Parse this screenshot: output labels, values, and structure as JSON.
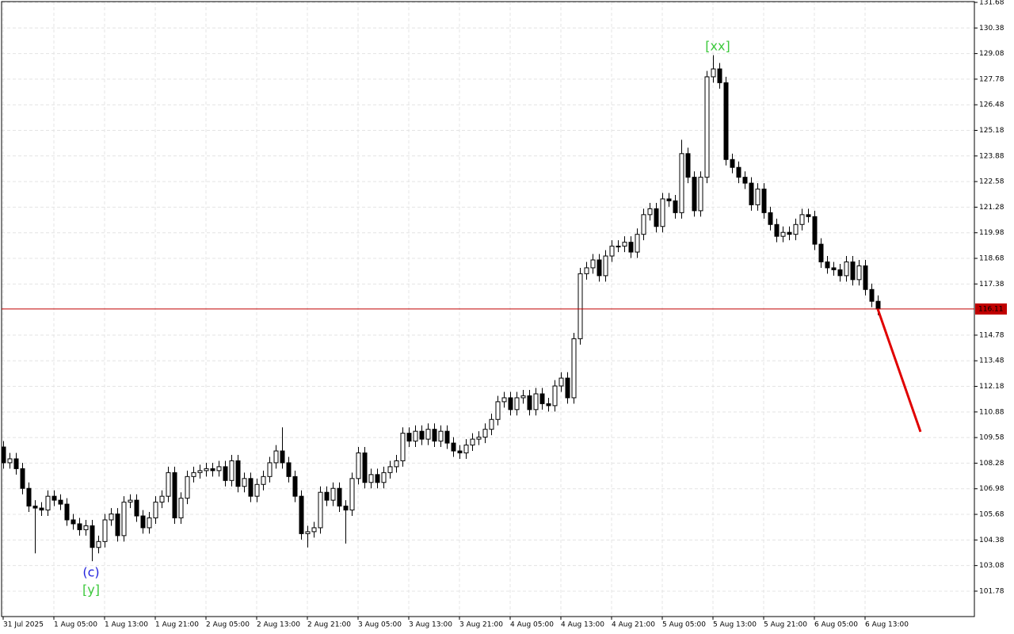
{
  "chart_data": {
    "type": "candlestick",
    "categories": [
      "31 Jul 2025",
      null,
      null,
      null,
      null,
      null,
      null,
      null,
      "1 Aug 05:00",
      null,
      null,
      null,
      null,
      null,
      null,
      null,
      "1 Aug 13:00",
      null,
      null,
      null,
      null,
      null,
      null,
      null,
      "1 Aug 21:00",
      null,
      null,
      null,
      null,
      null,
      null,
      null,
      "2 Aug 05:00",
      null,
      null,
      null,
      null,
      null,
      null,
      null,
      "2 Aug 13:00",
      null,
      null,
      null,
      null,
      null,
      null,
      null,
      "2 Aug 21:00",
      null,
      null,
      null,
      null,
      null,
      null,
      null,
      "3 Aug 05:00",
      null,
      null,
      null,
      null,
      null,
      null,
      null,
      "3 Aug 13:00",
      null,
      null,
      null,
      null,
      null,
      null,
      null,
      "3 Aug 21:00",
      null,
      null,
      null,
      null,
      null,
      null,
      null,
      "4 Aug 05:00",
      null,
      null,
      null,
      null,
      null,
      null,
      null,
      "4 Aug 13:00",
      null,
      null,
      null,
      null,
      null,
      null,
      null,
      "4 Aug 21:00",
      null,
      null,
      null,
      null,
      null,
      null,
      null,
      "5 Aug 05:00",
      null,
      null,
      null,
      null,
      null,
      null,
      null,
      "5 Aug 13:00",
      null,
      null,
      null,
      null,
      null,
      null,
      null,
      "5 Aug 21:00",
      null,
      null,
      null,
      null,
      null,
      null,
      null,
      "6 Aug 05:00",
      null,
      null,
      null,
      null,
      null,
      null,
      null,
      "6 Aug 13:00",
      null,
      null
    ],
    "open": [
      109.1,
      108.3,
      108.5,
      108.0,
      107.0,
      106.1,
      106.0,
      105.9,
      106.6,
      106.4,
      106.2,
      105.4,
      105.2,
      104.9,
      105.1,
      104.0,
      104.3,
      105.4,
      105.7,
      104.6,
      106.3,
      106.4,
      105.6,
      105.0,
      105.5,
      106.3,
      106.6,
      107.8,
      105.5,
      106.5,
      107.6,
      107.8,
      107.9,
      108.0,
      107.9,
      108.1,
      107.4,
      108.4,
      107.1,
      107.5,
      106.6,
      107.2,
      107.6,
      108.3,
      108.9,
      108.3,
      107.6,
      106.6,
      104.7,
      104.8,
      105.0,
      106.8,
      106.4,
      107.0,
      106.1,
      105.9,
      107.5,
      108.8,
      107.3,
      107.7,
      107.3,
      107.8,
      108.1,
      108.4,
      109.8,
      109.4,
      109.9,
      109.5,
      110.0,
      109.4,
      109.9,
      109.3,
      108.9,
      108.8,
      109.2,
      109.5,
      109.6,
      110.0,
      110.5,
      111.4,
      111.6,
      111.0,
      111.6,
      111.7,
      111.0,
      111.8,
      111.3,
      111.2,
      112.2,
      112.6,
      111.6,
      114.6,
      117.9,
      118.2,
      118.6,
      117.8,
      118.8,
      119.3,
      119.3,
      119.5,
      119.0,
      119.9,
      120.9,
      121.2,
      120.3,
      121.7,
      121.6,
      121.0,
      124.0,
      122.8,
      121.1,
      122.8,
      127.9,
      128.3,
      127.6,
      123.7,
      123.3,
      122.8,
      122.5,
      121.4,
      122.2,
      121.0,
      120.4,
      119.8,
      120.0,
      119.9,
      120.4,
      120.9,
      120.8,
      119.4,
      118.5,
      118.2,
      118.1,
      117.8,
      118.5,
      117.6,
      118.3,
      117.1,
      116.5
    ],
    "high": [
      109.4,
      108.8,
      108.8,
      108.3,
      107.3,
      106.4,
      106.3,
      106.9,
      106.9,
      106.7,
      106.5,
      105.7,
      105.5,
      105.4,
      105.4,
      104.6,
      105.7,
      106.0,
      106.0,
      106.6,
      106.7,
      106.7,
      105.9,
      105.8,
      106.6,
      106.9,
      108.1,
      108.1,
      106.8,
      107.9,
      108.1,
      108.2,
      108.3,
      108.3,
      108.4,
      108.4,
      108.7,
      108.7,
      107.8,
      107.8,
      107.5,
      107.9,
      108.6,
      109.2,
      110.1,
      108.6,
      107.9,
      106.9,
      105.1,
      105.3,
      107.1,
      107.1,
      107.3,
      107.3,
      106.4,
      107.8,
      109.1,
      109.1,
      108.0,
      108.0,
      108.1,
      108.4,
      108.7,
      110.1,
      110.1,
      110.2,
      110.2,
      110.3,
      110.3,
      110.2,
      110.2,
      109.6,
      109.2,
      109.5,
      109.8,
      109.9,
      110.3,
      110.8,
      111.7,
      111.9,
      111.9,
      111.9,
      112.0,
      112.0,
      112.1,
      112.1,
      111.6,
      112.5,
      112.9,
      112.9,
      114.9,
      118.2,
      118.5,
      118.9,
      118.9,
      119.1,
      119.6,
      119.6,
      119.8,
      119.8,
      120.2,
      121.2,
      121.5,
      121.5,
      122.0,
      122.0,
      121.9,
      124.7,
      124.3,
      123.1,
      123.1,
      128.2,
      129.0,
      128.6,
      127.9,
      124.0,
      123.6,
      123.1,
      122.8,
      122.5,
      122.5,
      121.3,
      120.7,
      120.3,
      120.3,
      120.7,
      121.2,
      121.2,
      121.1,
      119.7,
      118.8,
      118.5,
      118.4,
      118.8,
      118.8,
      118.6,
      118.6,
      117.4,
      116.8
    ],
    "low": [
      108.0,
      108.0,
      107.7,
      106.7,
      105.8,
      103.7,
      105.6,
      105.6,
      106.1,
      105.9,
      105.1,
      104.9,
      104.6,
      104.6,
      103.3,
      103.7,
      104.0,
      105.1,
      104.3,
      104.3,
      106.0,
      105.3,
      104.7,
      104.7,
      105.2,
      106.0,
      106.3,
      105.2,
      105.2,
      106.2,
      107.3,
      107.5,
      107.6,
      107.6,
      107.6,
      107.1,
      107.1,
      106.8,
      106.8,
      106.3,
      106.3,
      106.9,
      107.3,
      108.0,
      108.0,
      107.3,
      106.3,
      104.4,
      104.0,
      104.5,
      104.7,
      106.1,
      106.1,
      105.8,
      104.2,
      105.6,
      107.2,
      107.0,
      107.0,
      107.0,
      107.0,
      107.5,
      107.8,
      108.1,
      109.1,
      109.1,
      109.2,
      109.2,
      109.1,
      109.1,
      109.0,
      108.6,
      108.5,
      108.5,
      108.9,
      109.2,
      109.3,
      109.7,
      110.2,
      111.1,
      110.7,
      110.7,
      111.3,
      110.7,
      110.7,
      111.0,
      110.9,
      110.9,
      111.9,
      111.3,
      111.3,
      114.3,
      117.6,
      117.9,
      117.5,
      117.5,
      118.5,
      119.0,
      119.0,
      118.7,
      118.7,
      119.6,
      120.6,
      120.0,
      120.0,
      121.3,
      120.7,
      120.7,
      122.5,
      120.8,
      120.8,
      122.5,
      127.6,
      127.3,
      123.4,
      123.0,
      122.5,
      122.2,
      121.1,
      121.1,
      120.7,
      120.1,
      119.5,
      119.5,
      119.6,
      119.6,
      120.1,
      120.5,
      119.1,
      118.2,
      117.9,
      117.8,
      117.5,
      117.5,
      117.3,
      117.3,
      116.8,
      116.2,
      115.8
    ],
    "close": [
      108.3,
      108.5,
      108.0,
      107.0,
      106.1,
      106.0,
      105.9,
      106.6,
      106.4,
      106.2,
      105.4,
      105.2,
      104.9,
      105.1,
      104.0,
      104.3,
      105.4,
      105.7,
      104.6,
      106.3,
      106.4,
      105.6,
      105.0,
      105.5,
      106.3,
      106.6,
      107.8,
      105.5,
      106.5,
      107.6,
      107.8,
      107.9,
      108.0,
      107.9,
      108.1,
      107.4,
      108.4,
      107.1,
      107.5,
      106.6,
      107.2,
      107.6,
      108.3,
      108.9,
      108.3,
      107.6,
      106.6,
      104.7,
      104.8,
      105.0,
      106.8,
      106.4,
      107.0,
      106.1,
      105.9,
      107.5,
      108.8,
      107.3,
      107.7,
      107.3,
      107.8,
      108.1,
      108.4,
      109.8,
      109.4,
      109.9,
      109.5,
      110.0,
      109.4,
      109.9,
      109.3,
      108.9,
      108.8,
      109.2,
      109.5,
      109.6,
      110.0,
      110.5,
      111.4,
      111.6,
      111.0,
      111.6,
      111.7,
      111.0,
      111.8,
      111.3,
      111.2,
      112.2,
      112.6,
      111.6,
      114.6,
      117.9,
      118.2,
      118.6,
      117.8,
      118.8,
      119.3,
      119.3,
      119.5,
      119.0,
      119.9,
      120.9,
      121.2,
      120.3,
      121.7,
      121.6,
      121.0,
      124.0,
      122.8,
      121.1,
      122.8,
      127.9,
      128.3,
      127.6,
      123.7,
      123.3,
      122.8,
      122.5,
      121.4,
      122.2,
      121.0,
      120.4,
      119.8,
      120.0,
      119.9,
      120.4,
      120.9,
      120.8,
      119.4,
      118.5,
      118.2,
      118.1,
      117.8,
      118.5,
      117.6,
      118.3,
      117.1,
      116.5,
      116.11
    ],
    "up_color": "#ffffff",
    "down_color": "#000000",
    "ylim": [
      100.49,
      131.72
    ],
    "yticks": [
      131.68,
      130.38,
      129.08,
      127.78,
      126.48,
      125.18,
      123.88,
      122.58,
      121.28,
      119.98,
      118.68,
      117.38,
      114.78,
      113.48,
      112.18,
      110.88,
      109.58,
      108.28,
      106.98,
      105.68,
      104.38,
      103.08,
      101.78
    ],
    "grid": true,
    "current_price": 116.11,
    "current_price_color": "#c00000",
    "forecast": {
      "x": [
        138,
        144.75
      ],
      "y": [
        116.11,
        109.87
      ],
      "color": "#e00000"
    },
    "annotations": [
      {
        "text": "[xx]",
        "color": "#3cc83c"
      },
      {
        "text": "(c)",
        "color": "#2222dd"
      },
      {
        "text": "[y]",
        "color": "#3cc83c"
      }
    ]
  }
}
